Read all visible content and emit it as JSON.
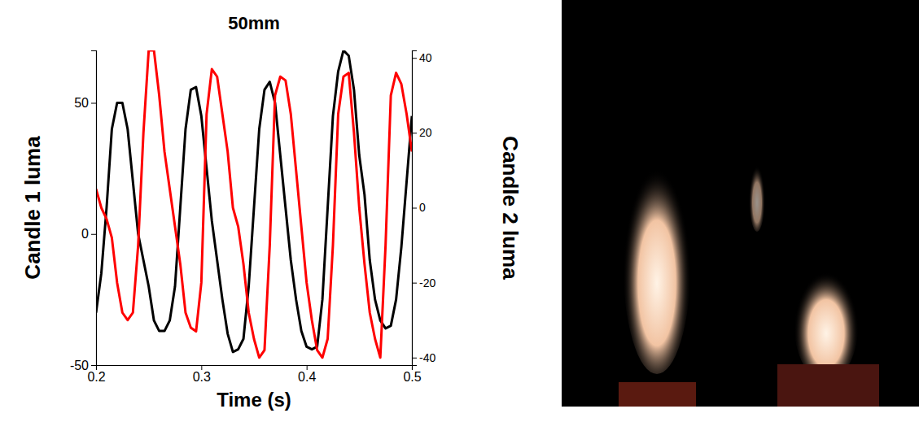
{
  "chart_data": {
    "type": "line",
    "title": "50mm",
    "x_label": "Time (s)",
    "y_label": "Candle 1 luma",
    "y2_label": "Candle 2 luma",
    "xlim": [
      0.2,
      0.5
    ],
    "xticks": [
      0.2,
      0.3,
      0.4,
      0.5
    ],
    "ylim": [
      -50,
      70
    ],
    "yticks": [
      -50,
      0,
      50
    ],
    "y2lim": [
      -42,
      42
    ],
    "y2ticks": [
      -40,
      -20,
      0,
      20,
      40
    ],
    "x": [
      0.2,
      0.205,
      0.21,
      0.215,
      0.22,
      0.225,
      0.23,
      0.235,
      0.24,
      0.245,
      0.25,
      0.255,
      0.26,
      0.265,
      0.27,
      0.275,
      0.28,
      0.285,
      0.29,
      0.295,
      0.3,
      0.305,
      0.31,
      0.315,
      0.32,
      0.325,
      0.33,
      0.335,
      0.34,
      0.345,
      0.35,
      0.355,
      0.36,
      0.365,
      0.37,
      0.375,
      0.38,
      0.385,
      0.39,
      0.395,
      0.4,
      0.405,
      0.41,
      0.415,
      0.42,
      0.425,
      0.43,
      0.435,
      0.44,
      0.445,
      0.45,
      0.455,
      0.46,
      0.465,
      0.47,
      0.475,
      0.48,
      0.485,
      0.49,
      0.495,
      0.5
    ],
    "series": [
      {
        "color": "#000000",
        "axis": "y",
        "values": [
          -30,
          -15,
          10,
          40,
          50,
          50,
          40,
          20,
          0,
          -10,
          -20,
          -33,
          -37,
          -37,
          -33,
          -20,
          10,
          40,
          55,
          56,
          45,
          25,
          5,
          -10,
          -25,
          -38,
          -45,
          -44,
          -40,
          -20,
          10,
          40,
          55,
          58,
          50,
          30,
          10,
          -10,
          -25,
          -37,
          -43,
          -44,
          -43,
          -25,
          10,
          45,
          62,
          70,
          68,
          55,
          30,
          15,
          -10,
          -25,
          -33,
          -36,
          -35,
          -25,
          -5,
          20,
          45
        ]
      },
      {
        "color": "#ff0000",
        "axis": "y2",
        "values": [
          5,
          0,
          -3,
          -8,
          -20,
          -28,
          -30,
          -28,
          -10,
          20,
          42,
          42,
          30,
          15,
          5,
          -5,
          -15,
          -28,
          -32,
          -33,
          -20,
          25,
          37,
          35,
          25,
          15,
          0,
          -5,
          -15,
          -28,
          -35,
          -40,
          -38,
          -10,
          30,
          35,
          34,
          25,
          10,
          -5,
          -20,
          -30,
          -38,
          -40,
          -35,
          -10,
          25,
          35,
          36,
          20,
          0,
          -15,
          -28,
          -35,
          -40,
          -10,
          30,
          36,
          33,
          25,
          15
        ]
      }
    ]
  }
}
